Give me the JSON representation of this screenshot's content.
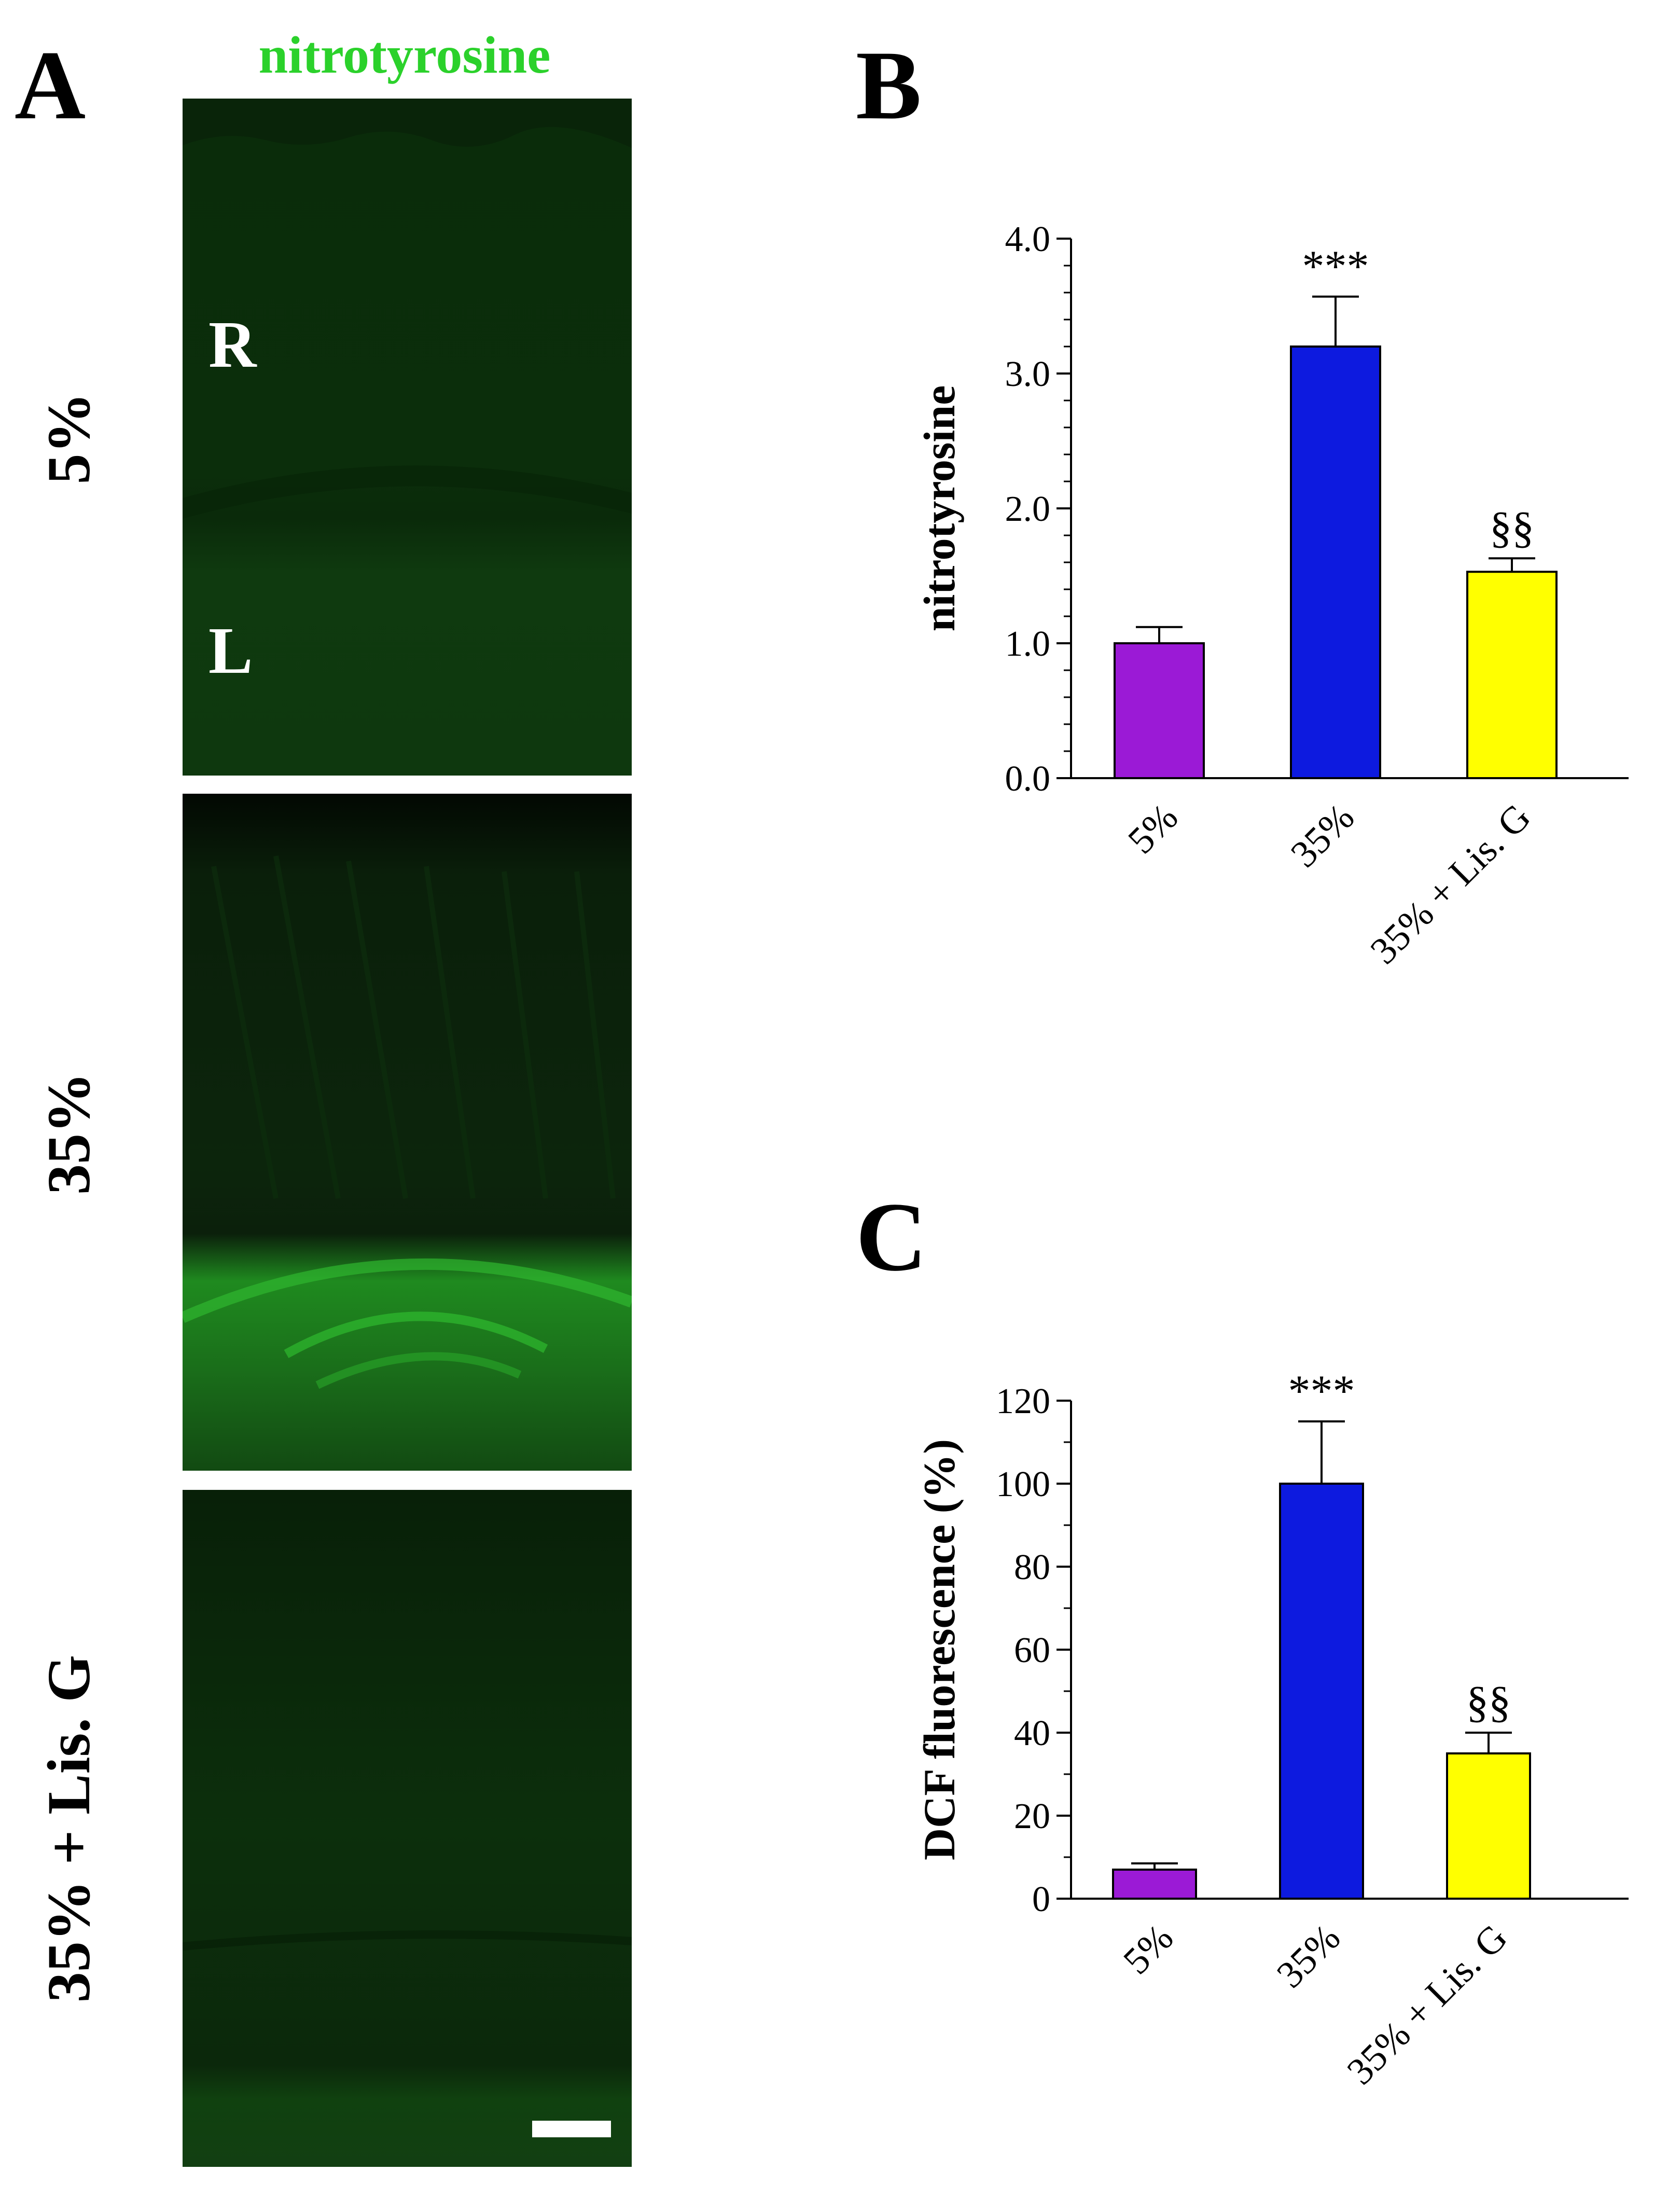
{
  "panel_a": {
    "letter": "A",
    "title": "nitrotyrosine",
    "rows": [
      {
        "label": "5%",
        "layer_labels": [
          "R",
          "L"
        ],
        "intensity": "low"
      },
      {
        "label": "35%",
        "intensity": "high"
      },
      {
        "label": "35% + Lis. G",
        "intensity": "low"
      }
    ],
    "stain_color": "#2bd12b"
  },
  "panel_b": {
    "letter": "B"
  },
  "panel_c": {
    "letter": "C"
  },
  "chart_data": [
    {
      "type": "bar",
      "panel": "B",
      "categories": [
        "5%",
        "35%",
        "35% + Lis. G"
      ],
      "values": [
        1.0,
        3.2,
        1.53
      ],
      "errors": [
        0.12,
        0.37,
        0.1
      ],
      "bar_colors": [
        "#9b1ad6",
        "#0d1adf",
        "#ffff00"
      ],
      "significance": [
        "",
        "***",
        "§§"
      ],
      "ylabel": "nitrotyrosine",
      "ylim": [
        0,
        4
      ],
      "yticks": [
        "0.0",
        "1.0",
        "2.0",
        "3.0",
        "4.0"
      ],
      "ytick_values": [
        0,
        1,
        2,
        3,
        4
      ],
      "minor_tick_step": 0.2,
      "grid": false
    },
    {
      "type": "bar",
      "panel": "C",
      "categories": [
        "5%",
        "35%",
        "35% + Lis. G"
      ],
      "values": [
        7,
        100,
        35
      ],
      "errors": [
        1.5,
        15,
        5
      ],
      "bar_colors": [
        "#9b1ad6",
        "#0d1adf",
        "#ffff00"
      ],
      "significance": [
        "",
        "***",
        "§§"
      ],
      "ylabel": "DCF fluorescence (%)",
      "ylim": [
        0,
        120
      ],
      "yticks": [
        "0",
        "20",
        "40",
        "60",
        "80",
        "100",
        "120"
      ],
      "ytick_values": [
        0,
        20,
        40,
        60,
        80,
        100,
        120
      ],
      "minor_tick_step": 10,
      "grid": false
    }
  ]
}
